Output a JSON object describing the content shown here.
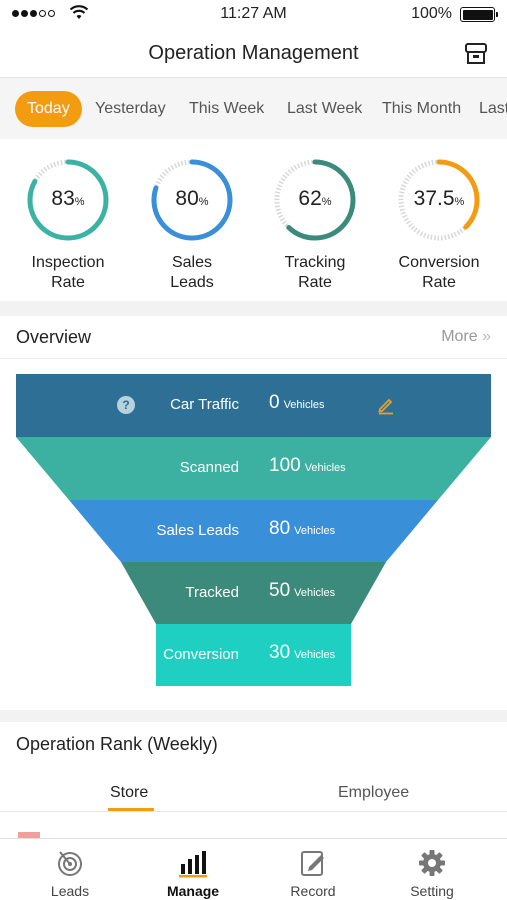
{
  "status_bar": {
    "time": "11:27 AM",
    "battery": "100%"
  },
  "nav": {
    "title": "Operation Management",
    "right_icon": "store-icon"
  },
  "date_tabs": [
    "Today",
    "Yesterday",
    "This Week",
    "Last Week",
    "This Month",
    "Last Month"
  ],
  "date_tabs_active": "Today",
  "metrics": [
    {
      "value": "83",
      "unit": "%",
      "fraction": 0.83,
      "color": "#3bb3a4",
      "label": [
        "Inspection",
        "Rate"
      ]
    },
    {
      "value": "80",
      "unit": "%",
      "fraction": 0.8,
      "color": "#3a8fd9",
      "label": [
        "Sales",
        "Leads"
      ]
    },
    {
      "value": "62",
      "unit": "%",
      "fraction": 0.62,
      "color": "#3c8a7c",
      "label": [
        "Tracking",
        "Rate"
      ]
    },
    {
      "value": "37.5",
      "unit": "%",
      "fraction": 0.375,
      "color": "#f39c12",
      "label": [
        "Conversion",
        "Rate"
      ]
    }
  ],
  "overview": {
    "title": "Overview",
    "more": "More",
    "funnel": [
      {
        "label": "Car Traffic",
        "value": "0",
        "unit": "Vehicles",
        "color": "#2e7095"
      },
      {
        "label": "Scanned",
        "value": "100",
        "unit": "Vehicles",
        "color": "#3cb1a2"
      },
      {
        "label": "Sales Leads",
        "value": "80",
        "unit": "Vehicles",
        "color": "#3a8fd9"
      },
      {
        "label": "Tracked",
        "value": "50",
        "unit": "Vehicles",
        "color": "#3c8a7c"
      },
      {
        "label": "Conversion",
        "value": "30",
        "unit": "Vehicles",
        "color": "#1fd0c2"
      }
    ],
    "help_icon": "help-icon",
    "edit_icon": "edit-icon"
  },
  "rank": {
    "title": "Operation Rank (Weekly)",
    "tabs": [
      "Store",
      "Employee"
    ],
    "active_tab": "Store"
  },
  "tab_bar": [
    {
      "label": "Leads",
      "icon": "target-icon"
    },
    {
      "label": "Manage",
      "icon": "bar-chart-icon"
    },
    {
      "label": "Record",
      "icon": "edit-note-icon"
    },
    {
      "label": "Setting",
      "icon": "gear-icon"
    }
  ],
  "colors": {
    "accent": "#f39c12"
  }
}
